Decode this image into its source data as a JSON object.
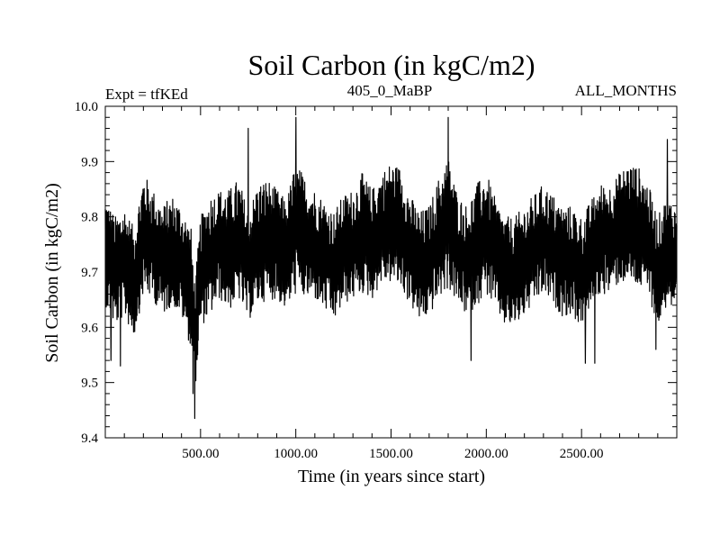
{
  "chart_data": {
    "type": "line",
    "title": "Soil Carbon (in kgC/m2)",
    "subtitle_left": "Expt = tfKEd",
    "subtitle_center": "405_0_MaBP",
    "subtitle_right": "ALL_MONTHS",
    "xlabel": "Time (in years since start)",
    "ylabel": "Soil Carbon (in kgC/m2)",
    "xlim": [
      0,
      3000
    ],
    "ylim": [
      9.4,
      10.0
    ],
    "x_ticks": [
      {
        "value": 500,
        "label": "500.00"
      },
      {
        "value": 1000,
        "label": "1000.00"
      },
      {
        "value": 1500,
        "label": "1500.00"
      },
      {
        "value": 2000,
        "label": "2000.00"
      },
      {
        "value": 2500,
        "label": "2500.00"
      }
    ],
    "y_ticks": [
      {
        "value": 9.4,
        "label": "9.4"
      },
      {
        "value": 9.5,
        "label": "9.5"
      },
      {
        "value": 9.6,
        "label": "9.6"
      },
      {
        "value": 9.7,
        "label": "9.7"
      },
      {
        "value": 9.8,
        "label": "9.8"
      },
      {
        "value": 9.9,
        "label": "9.9"
      },
      {
        "value": 10.0,
        "label": "10.0"
      }
    ],
    "grid": false,
    "line_color": "#000000",
    "series": [
      {
        "x": [
          0,
          50,
          100,
          150,
          200,
          250,
          300,
          350,
          400,
          450,
          470,
          500,
          550,
          600,
          650,
          700,
          750,
          800,
          850,
          900,
          950,
          1000,
          1050,
          1100,
          1150,
          1200,
          1250,
          1300,
          1350,
          1400,
          1450,
          1500,
          1550,
          1600,
          1650,
          1700,
          1750,
          1800,
          1850,
          1900,
          1950,
          2000,
          2050,
          2100,
          2150,
          2200,
          2250,
          2300,
          2350,
          2400,
          2450,
          2500,
          2550,
          2600,
          2650,
          2700,
          2750,
          2800,
          2850,
          2900,
          2950,
          3000
        ],
        "y": [
          9.74,
          9.7,
          9.72,
          9.68,
          9.77,
          9.75,
          9.72,
          9.74,
          9.72,
          9.67,
          9.58,
          9.7,
          9.73,
          9.75,
          9.74,
          9.76,
          9.71,
          9.75,
          9.76,
          9.75,
          9.73,
          9.78,
          9.76,
          9.75,
          9.73,
          9.71,
          9.74,
          9.75,
          9.77,
          9.75,
          9.78,
          9.79,
          9.78,
          9.74,
          9.71,
          9.72,
          9.76,
          9.79,
          9.74,
          9.72,
          9.75,
          9.77,
          9.73,
          9.7,
          9.7,
          9.72,
          9.74,
          9.76,
          9.74,
          9.72,
          9.72,
          9.7,
          9.73,
          9.76,
          9.76,
          9.78,
          9.79,
          9.78,
          9.76,
          9.7,
          9.74,
          9.72
        ],
        "band": [
          0.1,
          0.1,
          0.1,
          0.1,
          0.11,
          0.1,
          0.1,
          0.1,
          0.1,
          0.11,
          0.1,
          0.1,
          0.11,
          0.1,
          0.11,
          0.11,
          0.1,
          0.11,
          0.11,
          0.1,
          0.1,
          0.12,
          0.11,
          0.1,
          0.1,
          0.1,
          0.1,
          0.1,
          0.11,
          0.1,
          0.1,
          0.11,
          0.11,
          0.1,
          0.1,
          0.1,
          0.11,
          0.12,
          0.1,
          0.1,
          0.11,
          0.11,
          0.1,
          0.1,
          0.1,
          0.1,
          0.1,
          0.1,
          0.1,
          0.1,
          0.1,
          0.1,
          0.1,
          0.1,
          0.1,
          0.1,
          0.11,
          0.11,
          0.1,
          0.1,
          0.1,
          0.1
        ],
        "extremes": [
          {
            "x": 470,
            "y": 9.435
          },
          {
            "x": 460,
            "y": 9.48
          },
          {
            "x": 1000,
            "y": 9.98
          },
          {
            "x": 1800,
            "y": 9.98
          },
          {
            "x": 750,
            "y": 9.96
          },
          {
            "x": 2520,
            "y": 9.535
          },
          {
            "x": 2570,
            "y": 9.535
          },
          {
            "x": 1920,
            "y": 9.54
          },
          {
            "x": 30,
            "y": 9.54
          },
          {
            "x": 80,
            "y": 9.53
          },
          {
            "x": 2950,
            "y": 9.94
          },
          {
            "x": 2890,
            "y": 9.56
          }
        ]
      }
    ]
  }
}
